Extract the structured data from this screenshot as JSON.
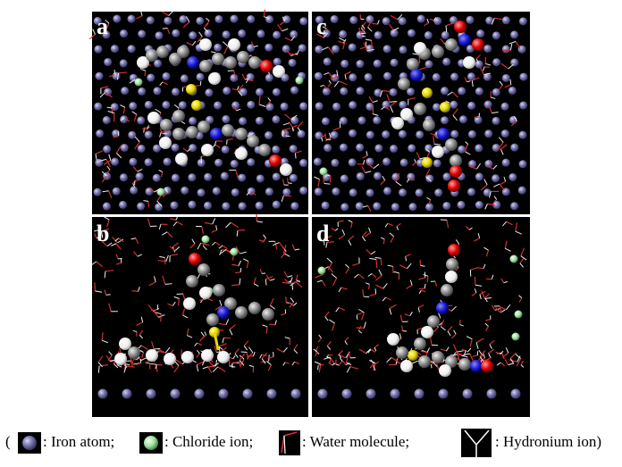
{
  "figure": {
    "panels": [
      {
        "label": "a"
      },
      {
        "label": "b"
      },
      {
        "label": "c"
      },
      {
        "label": "d"
      }
    ],
    "legend": {
      "open": "(",
      "items": [
        {
          "label": ": Iron atom;"
        },
        {
          "label": ": Chloride ion;"
        },
        {
          "label": ": Water molecule;"
        },
        {
          "label": ": Hydronium ion)"
        }
      ]
    }
  }
}
